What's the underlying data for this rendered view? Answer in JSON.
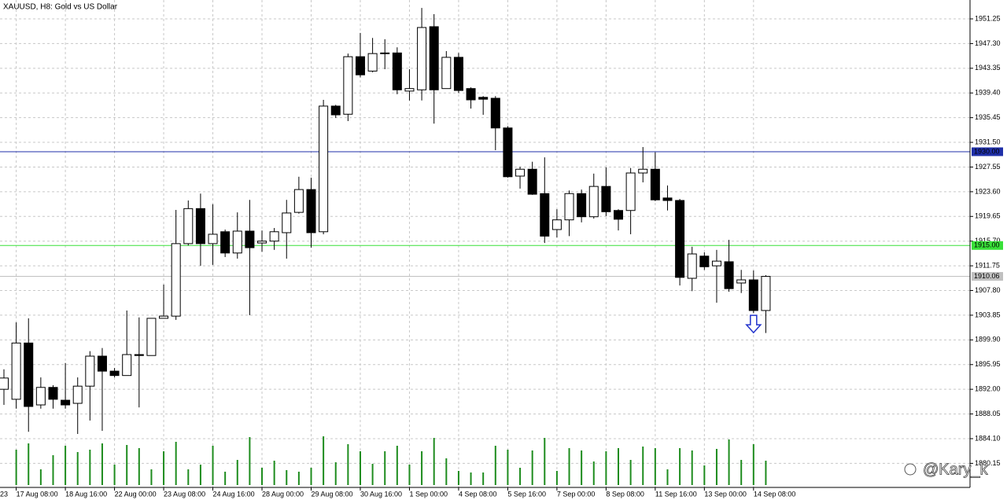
{
  "chart_data": {
    "type": "candlestick",
    "title": "XAUUSD, H8:  Gold vs US Dollar",
    "clipped_label": "23",
    "watermark": "@Kary_k",
    "categories": [
      null,
      "17 Aug 08:00",
      null,
      null,
      null,
      "18 Aug 16:00",
      null,
      null,
      null,
      "22 Aug 00:00",
      null,
      null,
      null,
      "23 Aug 08:00",
      null,
      null,
      null,
      "24 Aug 16:00",
      null,
      null,
      null,
      "28 Aug 00:00",
      null,
      null,
      null,
      "29 Aug 08:00",
      null,
      null,
      null,
      "30 Aug 16:00",
      null,
      null,
      null,
      "1 Sep 00:00",
      null,
      null,
      null,
      "4 Sep 08:00",
      null,
      null,
      null,
      "5 Sep 16:00",
      null,
      null,
      null,
      "7 Sep 00:00",
      null,
      null,
      null,
      "8 Sep 08:00",
      null,
      null,
      null,
      "11 Sep 16:00",
      null,
      null,
      null,
      "13 Sep 00:00",
      null,
      null,
      null,
      "14 Sep 08:00",
      null
    ],
    "open": [
      1892.0,
      1890.4,
      1899.4,
      1889.5,
      1892.3,
      1890.25,
      1889.75,
      1892.5,
      1897.3,
      1894.9,
      1894.2,
      1897.55,
      1897.4,
      1903.35,
      1903.7,
      1915.3,
      1920.9,
      1915.3,
      1917.2,
      1913.8,
      1917.3,
      1915.4,
      1915.7,
      1917.05,
      1920.3,
      1923.95,
      1917.2,
      1937.3,
      1936.0,
      1945.2,
      1942.9,
      1945.7,
      1945.8,
      1939.7,
      1939.9,
      1950.0,
      1940.1,
      1945.1,
      1940.1,
      1938.7,
      1938.55,
      1933.8,
      1926.1,
      1927.2,
      1923.3,
      1917.55,
      1919.1,
      1923.3,
      1919.6,
      1924.45,
      1920.6,
      1920.6,
      1926.6,
      1927.2,
      1922.6,
      1922.2,
      1909.75,
      1913.3,
      1911.75,
      1912.4,
      1909.0,
      1909.5,
      1904.6
    ],
    "high": [
      1895.2,
      1902.7,
      1903.35,
      1893.9,
      1892.65,
      1896.2,
      1893.9,
      1898.1,
      1898.6,
      1895.4,
      1904.6,
      1903.5,
      1903.35,
      1908.75,
      1920.7,
      1922.2,
      1923.3,
      1921.6,
      1917.55,
      1920.3,
      1922.3,
      1917.4,
      1917.8,
      1922.3,
      1926.0,
      1925.85,
      1938.3,
      1937.5,
      1945.7,
      1949.0,
      1948.2,
      1948.0,
      1946.7,
      1943.2,
      1953.0,
      1952.0,
      1946.1,
      1945.8,
      1940.3,
      1938.9,
      1938.9,
      1934.1,
      1927.6,
      1928.4,
      1929.1,
      1920.8,
      1923.8,
      1923.95,
      1926.5,
      1927.5,
      1920.8,
      1927.4,
      1930.75,
      1929.9,
      1924.6,
      1922.45,
      1914.8,
      1913.9,
      1914.3,
      1915.9,
      1911.1,
      1911.0,
      1910.25
    ],
    "low": [
      1889.5,
      1888.9,
      1885.2,
      1888.9,
      1888.9,
      1888.9,
      1884.85,
      1887.0,
      1885.35,
      1893.9,
      1894.2,
      1889.1,
      1897.4,
      1903.35,
      1903.1,
      1915.0,
      1911.75,
      1911.9,
      1913.15,
      1912.9,
      1903.85,
      1914.0,
      1914.3,
      1912.9,
      1920.1,
      1914.65,
      1916.8,
      1935.4,
      1934.9,
      1941.9,
      1942.7,
      1943.2,
      1939.2,
      1938.2,
      1938.2,
      1934.5,
      1940.1,
      1939.4,
      1936.9,
      1935.9,
      1930.25,
      1925.85,
      1924.1,
      1923.1,
      1915.4,
      1916.3,
      1916.5,
      1918.7,
      1919.3,
      1919.7,
      1917.4,
      1916.8,
      1925.1,
      1922.1,
      1920.6,
      1908.6,
      1907.7,
      1911.1,
      1905.85,
      1907.6,
      1907.4,
      1904.2,
      1901.0
    ],
    "close": [
      1893.8,
      1899.4,
      1889.25,
      1892.3,
      1890.4,
      1889.5,
      1892.5,
      1897.3,
      1894.9,
      1894.2,
      1897.55,
      1897.4,
      1903.35,
      1903.7,
      1915.3,
      1920.9,
      1915.3,
      1916.8,
      1913.8,
      1917.3,
      1914.65,
      1915.7,
      1917.2,
      1920.2,
      1923.95,
      1917.05,
      1937.3,
      1935.9,
      1945.2,
      1942.3,
      1945.7,
      1945.8,
      1939.9,
      1940.1,
      1949.87,
      1939.9,
      1945.1,
      1939.8,
      1938.3,
      1938.4,
      1933.8,
      1926.0,
      1927.2,
      1923.2,
      1916.5,
      1919.1,
      1923.3,
      1919.6,
      1924.45,
      1920.4,
      1919.2,
      1926.6,
      1927.2,
      1922.3,
      1922.2,
      1909.9,
      1913.65,
      1911.6,
      1912.5,
      1908.1,
      1909.5,
      1904.6,
      1910.06
    ],
    "volume": [
      null,
      45,
      53,
      20,
      38,
      50,
      42,
      45,
      53,
      26,
      51,
      47,
      20,
      43,
      55,
      20,
      26,
      50,
      17,
      32,
      61,
      22,
      31,
      19,
      17,
      22,
      62,
      29,
      52,
      43,
      27,
      43,
      50,
      26,
      43,
      60,
      34,
      18,
      16,
      16,
      50,
      45,
      22,
      44,
      60,
      18,
      47,
      44,
      30,
      43,
      47,
      32,
      49,
      47,
      20,
      47,
      44,
      25,
      46,
      58,
      32,
      52,
      31
    ],
    "up_color": "#ffffff",
    "down_color": "#000000",
    "volume_color": "#1e8c1e",
    "ylim": [
      1876.3,
      1954.27
    ],
    "yticks": [
      1951.25,
      {
        "value": 1947.3,
        "label": "1947.30"
      },
      1943.35,
      {
        "value": 1939.4,
        "label": "1939.40"
      },
      1935.45,
      {
        "value": 1931.5,
        "label": "1931.50"
      },
      1927.55,
      {
        "value": 1923.6,
        "label": "1923.60"
      },
      1919.65,
      {
        "value": 1915.7,
        "label": "1915.70"
      },
      1911.75,
      {
        "value": 1907.8,
        "label": "1907.80"
      },
      1903.85,
      {
        "value": 1899.9,
        "label": "1899.90"
      },
      1895.95,
      {
        "value": 1892,
        "label": "1892.00"
      },
      1888.05,
      {
        "value": 1884.1,
        "label": "1884.10"
      },
      1880.15
    ],
    "grid": true,
    "hlines": [
      {
        "value": 1930,
        "label": "1930.00",
        "color": "#1f2fa8"
      },
      {
        "value": 1915,
        "label": "1915.00",
        "color": "#38e038"
      },
      {
        "value": 1910.06,
        "label": "1910.06",
        "color": "#c0c0c0"
      }
    ],
    "arrow_index": 61
  }
}
